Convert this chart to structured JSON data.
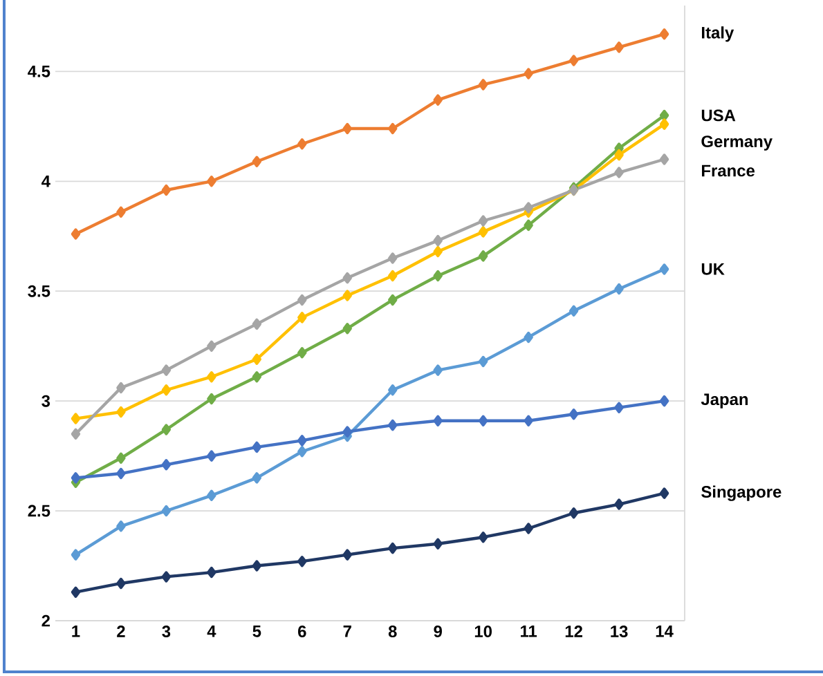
{
  "chart_data": {
    "type": "line",
    "categories": [
      "1",
      "2",
      "3",
      "4",
      "5",
      "6",
      "7",
      "8",
      "9",
      "10",
      "11",
      "12",
      "13",
      "14"
    ],
    "ylim": [
      2,
      4.8
    ],
    "yticks": [
      2,
      2.5,
      3,
      3.5,
      4,
      4.5
    ],
    "grid": "y",
    "legend": false,
    "marker": "diamond",
    "line_style": "solid",
    "series": [
      {
        "name": "Italy",
        "color": "#ed7d31",
        "values": [
          3.76,
          3.86,
          3.96,
          4.0,
          4.09,
          4.17,
          4.24,
          4.24,
          4.37,
          4.44,
          4.49,
          4.55,
          4.61,
          4.67
        ]
      },
      {
        "name": "USA",
        "color": "#70ad47",
        "values": [
          2.63,
          2.74,
          2.87,
          3.01,
          3.11,
          3.22,
          3.33,
          3.46,
          3.57,
          3.66,
          3.8,
          3.97,
          4.15,
          4.3
        ]
      },
      {
        "name": "Germany",
        "color": "#ffc000",
        "values": [
          2.92,
          2.95,
          3.05,
          3.11,
          3.19,
          3.38,
          3.48,
          3.57,
          3.68,
          3.77,
          3.86,
          3.96,
          4.12,
          4.26
        ]
      },
      {
        "name": "France",
        "color": "#a5a5a5",
        "values": [
          2.85,
          3.06,
          3.14,
          3.25,
          3.35,
          3.46,
          3.56,
          3.65,
          3.73,
          3.82,
          3.88,
          3.96,
          4.04,
          4.1
        ]
      },
      {
        "name": "UK",
        "color": "#5b9bd5",
        "values": [
          2.3,
          2.43,
          2.5,
          2.57,
          2.65,
          2.77,
          2.84,
          3.05,
          3.14,
          3.18,
          3.29,
          3.41,
          3.51,
          3.6
        ]
      },
      {
        "name": "Japan",
        "color": "#4472c4",
        "values": [
          2.65,
          2.67,
          2.71,
          2.75,
          2.79,
          2.82,
          2.86,
          2.89,
          2.91,
          2.91,
          2.91,
          2.94,
          2.97,
          3.0
        ]
      },
      {
        "name": "Singapore",
        "color": "#203864",
        "values": [
          2.13,
          2.17,
          2.2,
          2.22,
          2.25,
          2.27,
          2.3,
          2.33,
          2.35,
          2.38,
          2.42,
          2.49,
          2.53,
          2.58
        ]
      }
    ]
  }
}
